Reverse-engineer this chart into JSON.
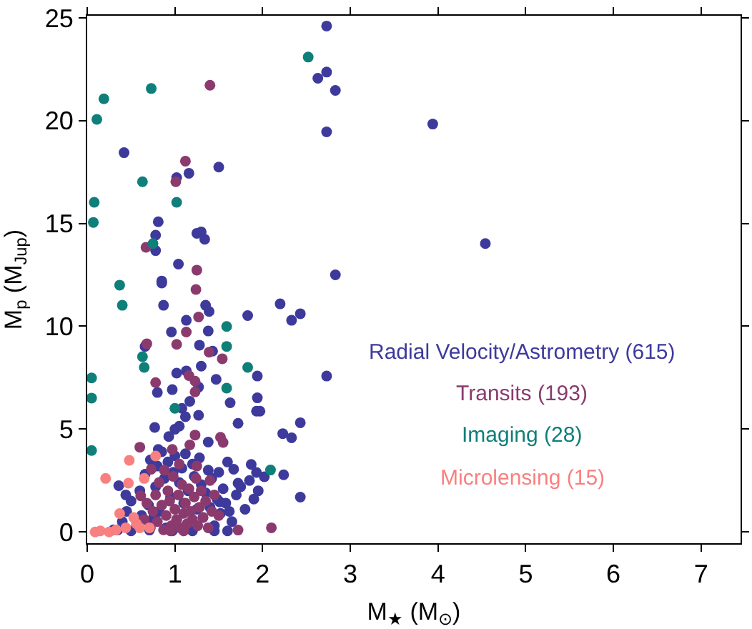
{
  "chart_data": {
    "type": "scatter",
    "xlabel": "M$_{★}$ (M$_{⊙}$)",
    "ylabel": "M$_{p}$ (M$_{Jup}$)",
    "xlim": [
      0,
      7.45
    ],
    "ylim": [
      -0.55,
      25.1
    ],
    "xticks": [
      0,
      1,
      2,
      3,
      4,
      5,
      6,
      7
    ],
    "yticks": [
      0,
      5,
      10,
      15,
      20,
      25
    ],
    "grid": false,
    "legend": "right",
    "marker": "circle",
    "series": [
      {
        "name": "Radial Velocity/Astrometry (615)",
        "color": "#3d3a9c",
        "x": [
          2.73,
          2.63,
          2.73,
          2.83,
          2.73,
          0.42,
          1.5,
          1.02,
          1.16,
          0.81,
          0.78,
          0.78,
          1.25,
          1.3,
          1.34,
          1.04,
          2.83,
          0.85,
          3.94,
          4.54,
          0.85,
          0.87,
          1.35,
          1.39,
          2.2,
          2.33,
          2.43,
          1.83,
          1.13,
          0.96,
          1.38,
          1.28,
          1.43,
          0.66,
          1.02,
          1.13,
          1.3,
          1.94,
          2.73,
          1.47,
          1.27,
          0.97,
          0.8,
          1.94,
          1.63,
          1.17,
          1.08,
          1.12,
          1.93,
          1.97,
          2.43,
          1.72,
          1.27,
          0.77,
          1.0,
          1.05,
          0.93,
          2.23,
          2.33,
          1.38,
          0.81,
          1.87,
          1.93,
          2.24,
          2.02,
          2.43,
          0.44,
          0.36,
          1.67,
          1.72,
          1.51,
          1.62,
          0.76,
          0.71,
          0.35,
          0.4,
          0.45,
          0.5,
          0.6,
          0.62,
          0.66,
          0.7,
          0.72,
          0.75,
          0.78,
          0.8,
          0.82,
          0.85,
          0.88,
          0.9,
          0.92,
          0.95,
          0.98,
          1.0,
          1.02,
          1.05,
          1.08,
          1.1,
          1.12,
          1.15,
          1.2,
          1.22,
          1.25,
          1.28,
          1.3,
          1.32,
          1.35,
          1.38,
          1.4,
          1.42,
          1.45,
          1.48,
          1.5,
          1.52,
          1.55,
          1.58,
          1.6,
          1.65,
          1.7,
          1.75,
          1.8,
          1.85,
          1.9,
          1.95,
          1.45,
          0.3,
          0.5,
          0.97,
          1.2,
          1.6
        ],
        "values": [
          24.6,
          22.06,
          22.36,
          21.47,
          19.45,
          18.44,
          17.74,
          17.23,
          17.44,
          15.08,
          14.43,
          13.68,
          14.52,
          14.59,
          14.23,
          13.02,
          12.5,
          12.2,
          19.83,
          14.02,
          12.1,
          11.02,
          11.02,
          10.72,
          11.09,
          10.29,
          10.61,
          10.52,
          10.29,
          9.72,
          9.77,
          9.08,
          8.79,
          9.02,
          7.72,
          7.83,
          8.06,
          7.58,
          7.58,
          7.42,
          7.04,
          6.92,
          6.78,
          6.52,
          6.28,
          6.35,
          6.01,
          5.6,
          5.87,
          5.87,
          5.31,
          5.28,
          5.67,
          5.08,
          4.99,
          5.14,
          4.64,
          4.78,
          4.58,
          4.37,
          4.01,
          3.28,
          2.89,
          2.78,
          2.68,
          1.69,
          1.8,
          2.25,
          3.05,
          2.37,
          1.46,
          1.0,
          0.77,
          0.09,
          0.1,
          0.5,
          1.0,
          1.5,
          2.0,
          0.8,
          2.8,
          1.3,
          3.5,
          0.5,
          2.2,
          3.2,
          1.0,
          3.9,
          2.6,
          0.2,
          3.4,
          1.7,
          2.9,
          3.7,
          0.6,
          2.4,
          3.1,
          1.4,
          3.8,
          2.0,
          3.3,
          2.7,
          1.1,
          3.6,
          2.3,
          0.7,
          1.9,
          3.0,
          1.2,
          2.6,
          0.3,
          1.6,
          2.9,
          0.9,
          2.1,
          1.4,
          3.4,
          0.5,
          1.8,
          2.2,
          1.1,
          2.5,
          1.6,
          2.0,
          0.05,
          0.1,
          0.05,
          0.05,
          0.05,
          0.05
        ]
      },
      {
        "name": "Transits (193)",
        "color": "#8b3a6e",
        "x": [
          1.4,
          1.12,
          1.01,
          0.67,
          1.25,
          1.24,
          1.27,
          1.13,
          0.68,
          1.02,
          1.39,
          1.54,
          0.78,
          1.23,
          1.23,
          1.16,
          1.23,
          1.52,
          1.55,
          0.6,
          0.97,
          1.17,
          0.73,
          0.61,
          1.72,
          2.1,
          0.72,
          0.75,
          0.78,
          0.8,
          0.82,
          0.85,
          0.87,
          0.9,
          0.92,
          0.94,
          0.96,
          0.98,
          1.0,
          1.02,
          1.04,
          1.06,
          1.08,
          1.1,
          1.12,
          1.14,
          1.16,
          1.18,
          1.2,
          1.22,
          1.24,
          1.26,
          1.28,
          1.3,
          1.32,
          1.35,
          1.38,
          1.4,
          1.42,
          0.88,
          1.05,
          1.25,
          1.45,
          0.65,
          0.68,
          1.5,
          1.1,
          0.95
        ],
        "values": [
          21.72,
          18.03,
          17.03,
          13.84,
          12.73,
          11.79,
          10.45,
          9.72,
          9.15,
          9.12,
          8.74,
          8.42,
          7.26,
          7.33,
          6.81,
          7.6,
          4.71,
          4.6,
          4.35,
          4.12,
          4.01,
          4.23,
          3.05,
          1.75,
          0.09,
          0.2,
          0.2,
          1.0,
          1.8,
          0.5,
          2.4,
          1.3,
          0.1,
          0.8,
          2.0,
          1.5,
          0.3,
          2.7,
          1.1,
          0.6,
          1.8,
          0.2,
          2.3,
          0.9,
          1.4,
          0.4,
          2.1,
          1.0,
          0.6,
          1.7,
          2.6,
          0.3,
          1.2,
          2.0,
          0.7,
          1.5,
          0.2,
          2.5,
          1.0,
          3.0,
          3.3,
          3.2,
          1.8,
          0.6,
          1.4,
          0.8,
          0.05,
          0.05
        ]
      },
      {
        "name": "Imaging (28)",
        "color": "#0f7f7a",
        "x": [
          2.52,
          0.73,
          0.19,
          0.11,
          0.63,
          1.02,
          0.08,
          0.07,
          0.75,
          0.37,
          0.4,
          1.59,
          0.63,
          0.65,
          1.59,
          1.83,
          1.59,
          0.05,
          0.05,
          0.05,
          1.0,
          2.09
        ],
        "values": [
          23.09,
          21.56,
          21.06,
          20.06,
          17.03,
          16.03,
          16.03,
          15.05,
          14.02,
          12.0,
          11.02,
          9.99,
          8.52,
          8.0,
          9.02,
          8.0,
          6.99,
          7.49,
          6.51,
          3.96,
          6.01,
          3.01
        ]
      },
      {
        "name": "Microlensing (15)",
        "color": "#f98080",
        "x": [
          0.48,
          0.78,
          0.21,
          0.47,
          0.65,
          0.37,
          0.53,
          0.09,
          0.25,
          0.44,
          0.6,
          0.71,
          0.15,
          0.33,
          0.56
        ],
        "values": [
          3.48,
          3.69,
          2.6,
          2.37,
          2.6,
          0.89,
          0.7,
          0.0,
          0.0,
          0.2,
          0.2,
          0.2,
          0.05,
          0.1,
          0.4
        ]
      }
    ]
  }
}
